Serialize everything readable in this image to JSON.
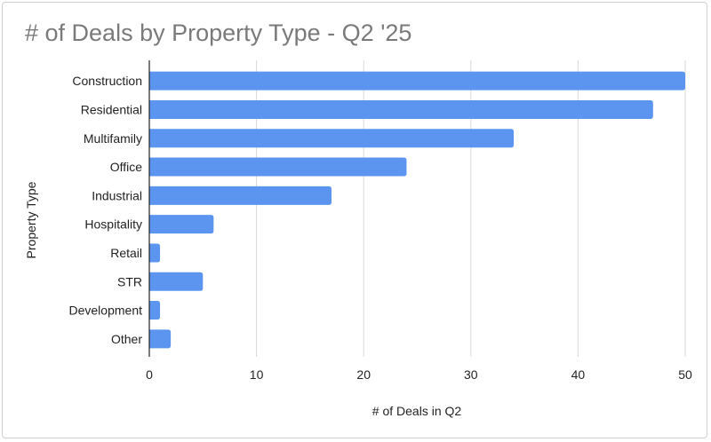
{
  "chart_data": {
    "type": "bar",
    "orientation": "horizontal",
    "title": "# of Deals by Property Type - Q2 '25",
    "xlabel": "# of Deals in Q2",
    "ylabel": "Property Type",
    "categories": [
      "Construction",
      "Residential",
      "Multifamily",
      "Office",
      "Industrial",
      "Hospitality",
      "Retail",
      "STR",
      "Development",
      "Other"
    ],
    "values": [
      50,
      47,
      34,
      24,
      17,
      6,
      1,
      5,
      1,
      2
    ],
    "xlim": [
      0,
      50
    ],
    "xticks": [
      0,
      10,
      20,
      30,
      40,
      50
    ],
    "grid": "vertical",
    "bar_color": "#5b95f0",
    "grid_color": "#d9d9d9",
    "title_color": "#7a7a7a"
  }
}
